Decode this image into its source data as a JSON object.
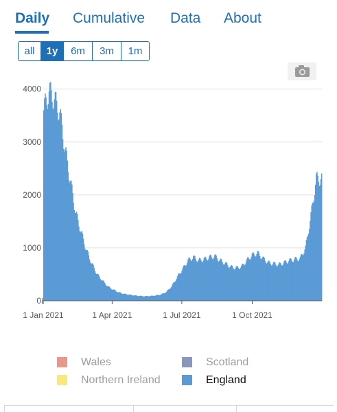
{
  "tabs": [
    {
      "label": "Daily",
      "active": true
    },
    {
      "label": "Cumulative",
      "active": false
    },
    {
      "label": "Data",
      "active": false
    },
    {
      "label": "About",
      "active": false
    }
  ],
  "range_buttons": [
    {
      "label": "all",
      "active": false
    },
    {
      "label": "1y",
      "active": true
    },
    {
      "label": "6m",
      "active": false
    },
    {
      "label": "3m",
      "active": false
    },
    {
      "label": "1m",
      "active": false
    }
  ],
  "camera_icon": "camera-icon",
  "legend": [
    {
      "label": "Wales",
      "color": "#e8978a",
      "enabled": false
    },
    {
      "label": "Scotland",
      "color": "#8797bd",
      "enabled": false
    },
    {
      "label": "Northern Ireland",
      "color": "#fbe87c",
      "enabled": false
    },
    {
      "label": "England",
      "color": "#5b9bd5",
      "enabled": true
    }
  ],
  "chart_data": {
    "type": "bar",
    "stacked": true,
    "x_start": "2021-01-01",
    "x_end": "2021-12-31",
    "x_ticks": [
      "1 Jan 2021",
      "1 Apr 2021",
      "1 Jul 2021",
      "1 Oct 2021"
    ],
    "y_ticks": [
      "0",
      "1000",
      "2000",
      "3000",
      "4000"
    ],
    "ylim": [
      0,
      4100
    ],
    "grid": true,
    "legend_position": "bottom",
    "bar_color": "#5b9bd5",
    "series": [
      {
        "name": "England",
        "weekly_values": [
          3600,
          3950,
          3800,
          3550,
          2850,
          2250,
          1650,
          1300,
          950,
          700,
          500,
          380,
          270,
          210,
          160,
          130,
          115,
          100,
          90,
          85,
          90,
          100,
          120,
          170,
          280,
          450,
          600,
          760,
          820,
          760,
          780,
          820,
          840,
          760,
          700,
          640,
          620,
          640,
          760,
          860,
          900,
          800,
          720,
          700,
          680,
          720,
          760,
          780,
          800,
          1000,
          1600,
          2300
        ]
      }
    ]
  }
}
